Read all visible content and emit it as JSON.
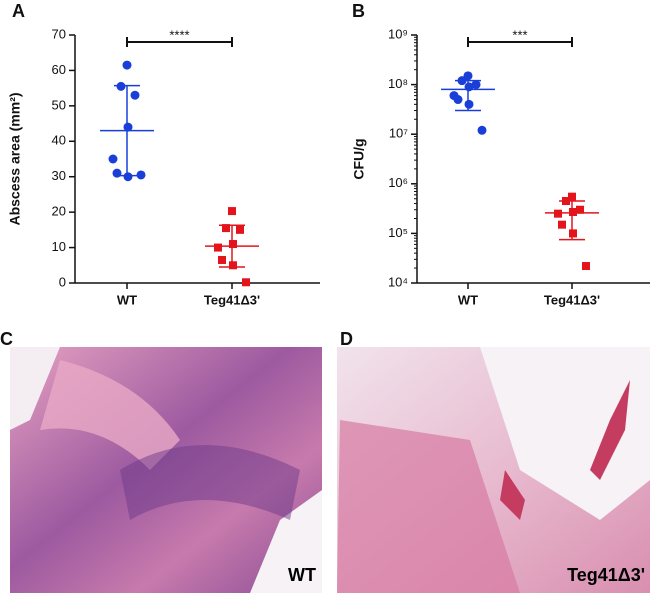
{
  "chart_data": [
    {
      "type": "scatter",
      "panel": "A",
      "y_label": "Abscess area (mm²)",
      "categories": [
        "WT",
        "Teg41Δ3'"
      ],
      "annotation": "****",
      "ylim": [
        0,
        70
      ],
      "yticks": [
        0,
        10,
        20,
        30,
        40,
        50,
        60,
        70
      ],
      "log_scale": false,
      "series": [
        {
          "name": "WT",
          "color": "#1a3fd8",
          "values": [
            61.5,
            55.5,
            53,
            44,
            35,
            31,
            30,
            30.5
          ],
          "mean": 43,
          "error_high": 55.7,
          "error_low": 30.3
        },
        {
          "name": "Teg41Δ3'",
          "color": "#e3141c",
          "values": [
            20.3,
            15.5,
            15,
            11,
            10,
            6.5,
            5,
            0.2
          ],
          "mean": 10.4,
          "error_high": 16.3,
          "error_low": 4.5
        }
      ]
    },
    {
      "type": "scatter",
      "panel": "B",
      "y_label": "CFU/g",
      "categories": [
        "WT",
        "Teg41Δ3'"
      ],
      "annotation": "***",
      "ylim": [
        10000,
        1000000000
      ],
      "log_scale": true,
      "yticks": [
        {
          "value": 10000,
          "label": "10⁴"
        },
        {
          "value": 100000,
          "label": "10⁵"
        },
        {
          "value": 1000000,
          "label": "10⁶"
        },
        {
          "value": 10000000,
          "label": "10⁷"
        },
        {
          "value": 100000000,
          "label": "10⁸"
        },
        {
          "value": 1000000000,
          "label": "10⁹"
        }
      ],
      "series": [
        {
          "name": "WT",
          "color": "#1a3fd8",
          "values": [
            150000000,
            120000000,
            100000000,
            90000000,
            60000000,
            50000000,
            40000000,
            12000000
          ],
          "mean": 80000000,
          "error_high": 120000000,
          "error_low": 30000000
        },
        {
          "name": "Teg41Δ3'",
          "color": "#e3141c",
          "values": [
            550000,
            450000,
            300000,
            270000,
            250000,
            150000,
            100000,
            22000
          ],
          "mean": 260000,
          "error_high": 450000,
          "error_low": 75000
        }
      ]
    }
  ],
  "images": [
    {
      "panel": "C",
      "label": "WT"
    },
    {
      "panel": "D",
      "label": "Teg41Δ3'"
    }
  ]
}
